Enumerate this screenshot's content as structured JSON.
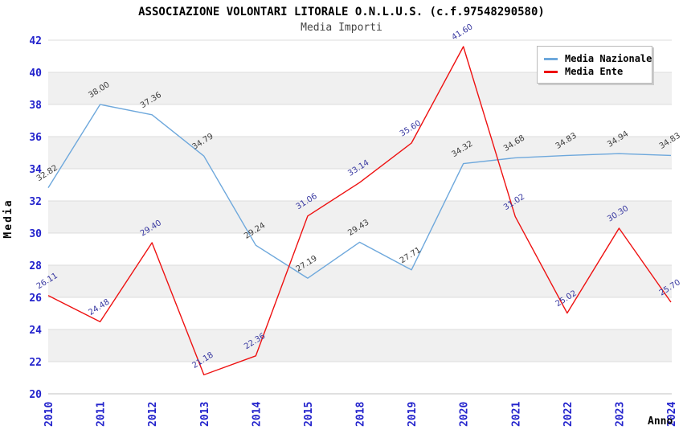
{
  "chart_data": {
    "type": "line",
    "title": "ASSOCIAZIONE VOLONTARI LITORALE O.N.L.U.S. (c.f.97548290580)",
    "subtitle": "Media Importi",
    "xlabel": "Anno",
    "ylabel": "Media",
    "ylim": [
      20,
      42
    ],
    "ytick_step": 2,
    "yticks": [
      20,
      22,
      24,
      26,
      28,
      30,
      32,
      34,
      36,
      38,
      40,
      42
    ],
    "grid": true,
    "legend_position": "top-right",
    "categories": [
      "2010",
      "2011",
      "2012",
      "2013",
      "2014",
      "2015",
      "2018",
      "2019",
      "2020",
      "2021",
      "2022",
      "2023",
      "2024"
    ],
    "series": [
      {
        "name": "Media Nazionale",
        "color": "#6EA8DC",
        "label_color": "#3C3C3C",
        "values": [
          32.82,
          38.0,
          37.36,
          34.79,
          29.24,
          27.19,
          29.43,
          27.71,
          34.32,
          34.68,
          34.83,
          34.94,
          34.83
        ]
      },
      {
        "name": "Media Ente",
        "color": "#EE1111",
        "label_color": "#3737A0",
        "values": [
          26.11,
          24.48,
          29.4,
          21.18,
          22.36,
          31.06,
          33.14,
          35.6,
          41.6,
          31.02,
          25.02,
          30.3,
          25.7
        ]
      }
    ],
    "colors": {
      "axis_tick_label": "#2222CC",
      "band_fill": "#F0F0F0",
      "gridline": "#DCDCDC",
      "axis_line": "#C0C0C0",
      "axis_title": "#000000"
    }
  }
}
